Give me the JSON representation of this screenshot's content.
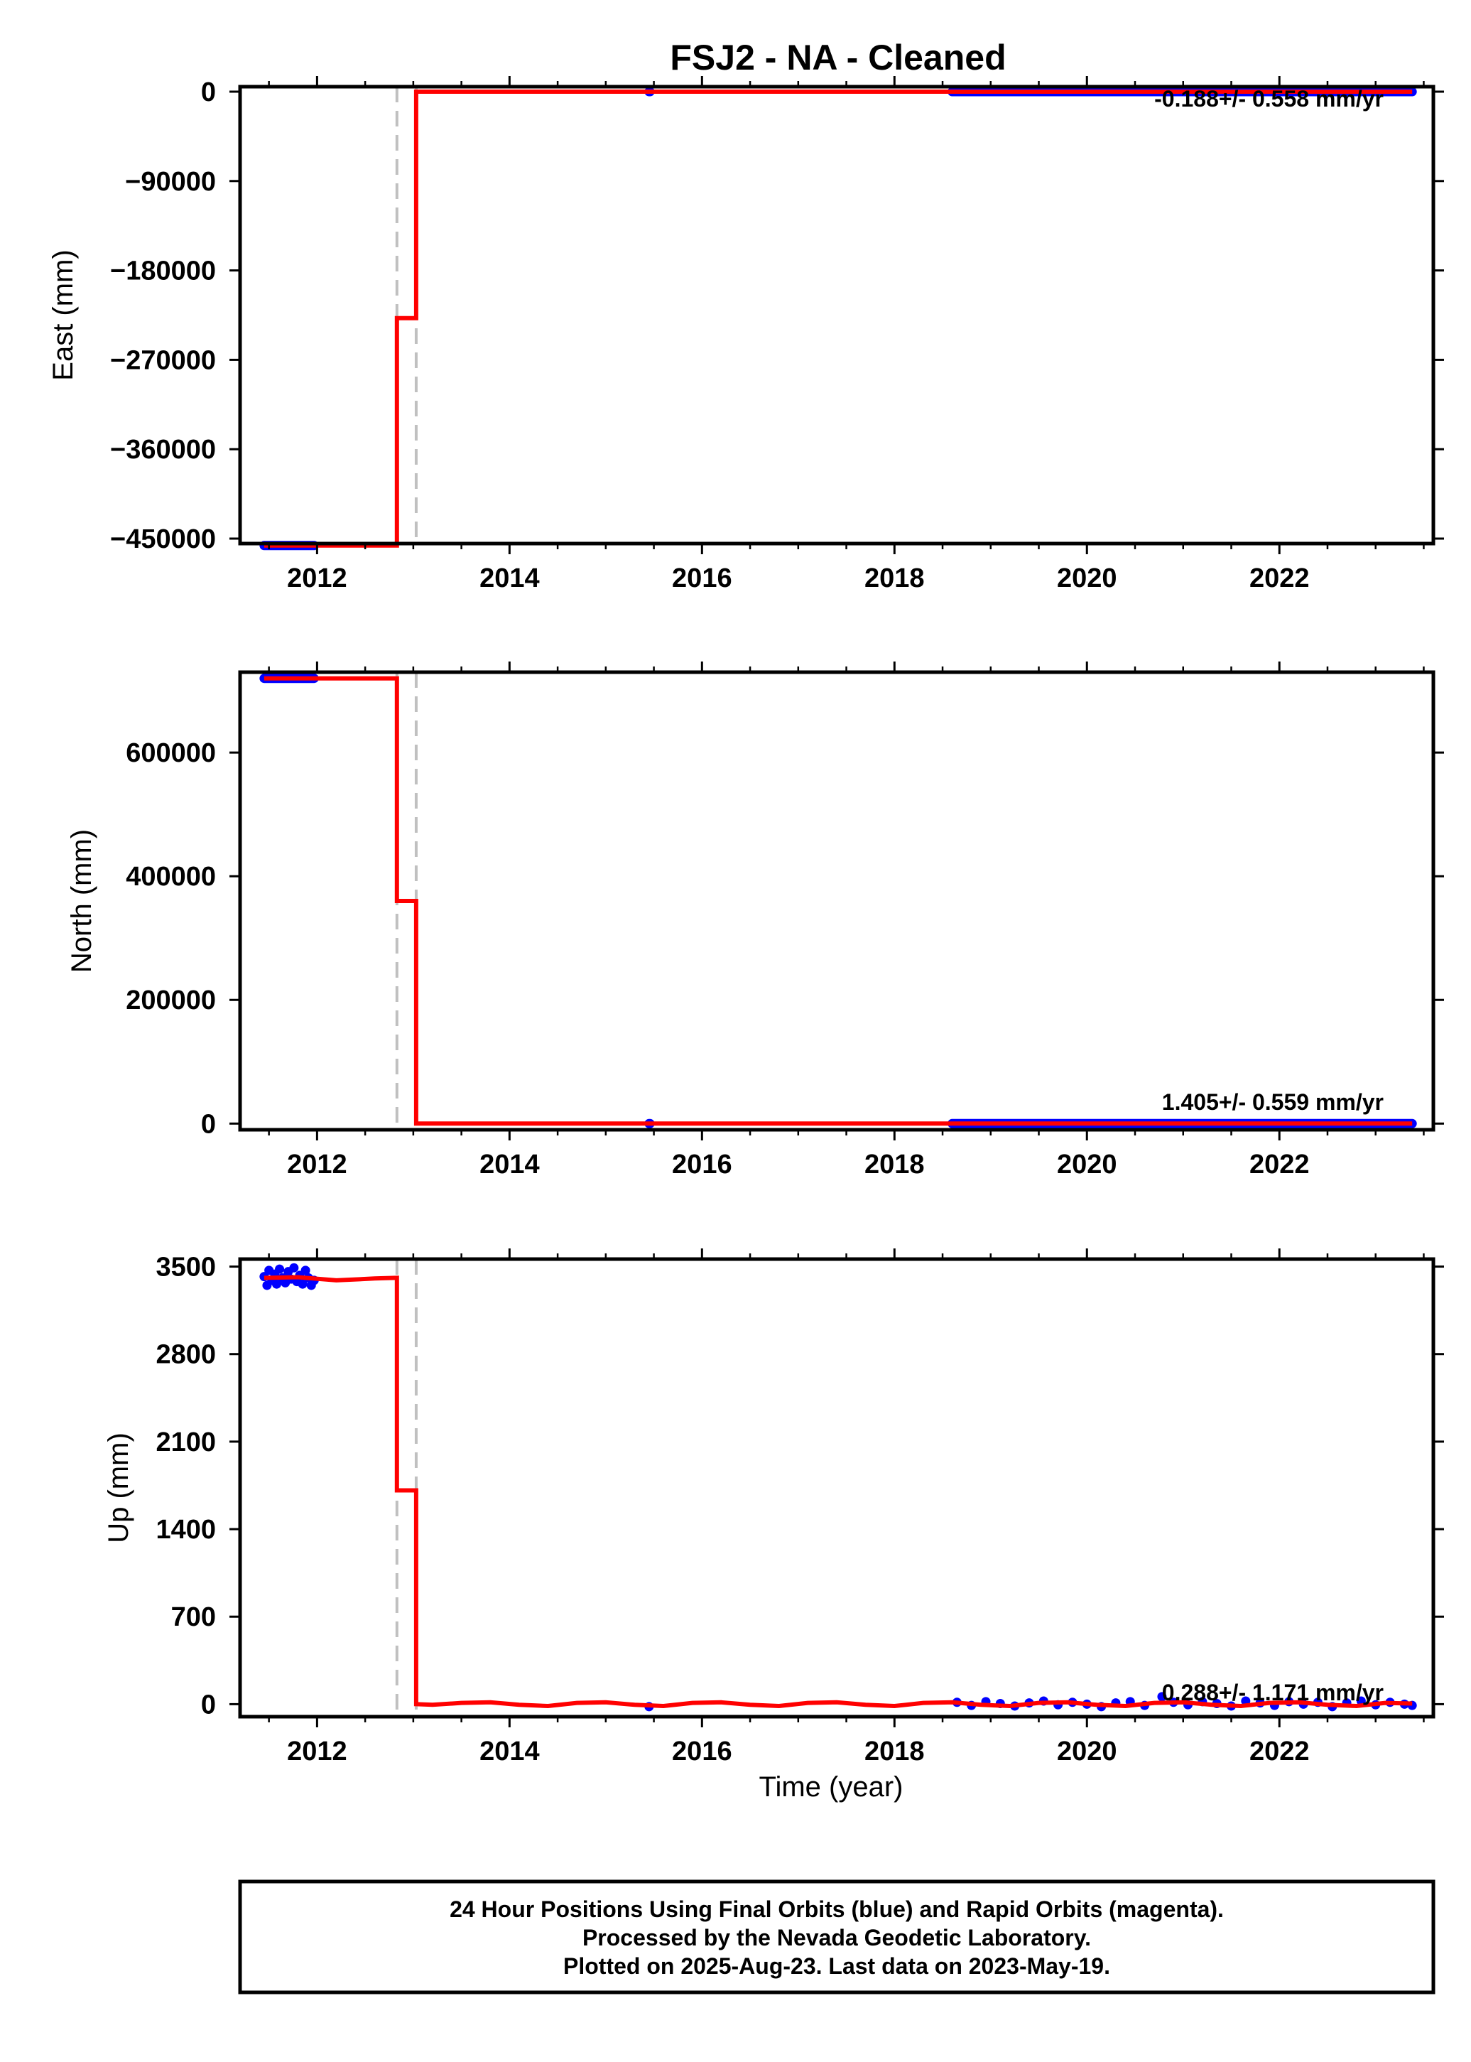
{
  "title": "FSJ2  - NA - Cleaned",
  "xlabel": "Time (year)",
  "footer": [
    "24 Hour Positions Using Final Orbits (blue) and Rapid Orbits (magenta).",
    "Processed by the Nevada Geodetic Laboratory.",
    "Plotted on 2025-Aug-23. Last data on 2023-May-19."
  ],
  "colors": {
    "final_orbits": "#0000ff",
    "rapid_orbits": "#ff00ff",
    "model": "#ff0000",
    "event_line": "#c0c0c0"
  },
  "chart_data": [
    {
      "type": "scatter",
      "panel": "east",
      "ylabel": "East (mm)",
      "xlim": [
        2011.2,
        2023.6
      ],
      "ylim": [
        -455000,
        5000
      ],
      "xticks": [
        2012,
        2014,
        2016,
        2018,
        2020,
        2022
      ],
      "xtick_labels": [
        "2012",
        "2014",
        "2016",
        "2018",
        "2020",
        "2022"
      ],
      "yticks": [
        0,
        -90000,
        -180000,
        -270000,
        -360000,
        -450000
      ],
      "ytick_labels": [
        "0",
        "−90000",
        "−180000",
        "−270000",
        "−360000",
        "−450000"
      ],
      "rate_label": "-0.188+/- 0.558 mm/yr",
      "event_lines_x": [
        2012.83,
        2013.03
      ],
      "observation_segments": [
        {
          "x_start": 2011.45,
          "x_end": 2011.97,
          "y": -457000
        },
        {
          "x_start": 2015.45,
          "x_end": 2015.46,
          "y": 0
        },
        {
          "x_start": 2018.6,
          "x_end": 2023.38,
          "y": 0
        }
      ],
      "model": {
        "name": "model",
        "x": [
          2011.45,
          2012.83,
          2012.83,
          2013.03,
          2013.03,
          2023.38
        ],
        "y": [
          -457000,
          -457000,
          -228000,
          -228000,
          0,
          0
        ]
      }
    },
    {
      "type": "scatter",
      "panel": "north",
      "ylabel": "North (mm)",
      "xlim": [
        2011.2,
        2023.6
      ],
      "ylim": [
        -10000,
        730000
      ],
      "xticks": [
        2012,
        2014,
        2016,
        2018,
        2020,
        2022
      ],
      "xtick_labels": [
        "2012",
        "2014",
        "2016",
        "2018",
        "2020",
        "2022"
      ],
      "yticks": [
        0,
        200000,
        400000,
        600000
      ],
      "ytick_labels": [
        "0",
        "200000",
        "400000",
        "600000"
      ],
      "rate_label": "1.405+/- 0.559 mm/yr",
      "event_lines_x": [
        2012.83,
        2013.03
      ],
      "observation_segments": [
        {
          "x_start": 2011.45,
          "x_end": 2011.97,
          "y": 720000
        },
        {
          "x_start": 2015.45,
          "x_end": 2015.46,
          "y": 0
        },
        {
          "x_start": 2018.6,
          "x_end": 2023.38,
          "y": 0
        }
      ],
      "model": {
        "name": "model",
        "x": [
          2011.45,
          2012.83,
          2012.83,
          2013.03,
          2013.03,
          2023.38
        ],
        "y": [
          720000,
          720000,
          360000,
          360000,
          0,
          0
        ]
      }
    },
    {
      "type": "scatter",
      "panel": "up",
      "ylabel": "Up (mm)",
      "xlim": [
        2011.2,
        2023.6
      ],
      "ylim": [
        -100,
        3560
      ],
      "xticks": [
        2012,
        2014,
        2016,
        2018,
        2020,
        2022
      ],
      "xtick_labels": [
        "2012",
        "2014",
        "2016",
        "2018",
        "2020",
        "2022"
      ],
      "yticks": [
        0,
        700,
        1400,
        2100,
        2800,
        3500
      ],
      "ytick_labels": [
        "0",
        "700",
        "1400",
        "2100",
        "2800",
        "3500"
      ],
      "rate_label": "0.288+/- 1.171 mm/yr",
      "event_lines_x": [
        2012.83,
        2013.03
      ],
      "observation_points": [
        {
          "x": 2011.45,
          "y": 3420
        },
        {
          "x": 2011.48,
          "y": 3350
        },
        {
          "x": 2011.5,
          "y": 3470
        },
        {
          "x": 2011.53,
          "y": 3390
        },
        {
          "x": 2011.56,
          "y": 3440
        },
        {
          "x": 2011.58,
          "y": 3360
        },
        {
          "x": 2011.61,
          "y": 3480
        },
        {
          "x": 2011.64,
          "y": 3410
        },
        {
          "x": 2011.67,
          "y": 3370
        },
        {
          "x": 2011.7,
          "y": 3460
        },
        {
          "x": 2011.73,
          "y": 3400
        },
        {
          "x": 2011.76,
          "y": 3490
        },
        {
          "x": 2011.79,
          "y": 3380
        },
        {
          "x": 2011.82,
          "y": 3430
        },
        {
          "x": 2011.85,
          "y": 3360
        },
        {
          "x": 2011.88,
          "y": 3470
        },
        {
          "x": 2011.91,
          "y": 3410
        },
        {
          "x": 2011.94,
          "y": 3350
        },
        {
          "x": 2011.97,
          "y": 3390
        },
        {
          "x": 2015.45,
          "y": -20
        },
        {
          "x": 2018.65,
          "y": 15
        },
        {
          "x": 2018.8,
          "y": -10
        },
        {
          "x": 2018.95,
          "y": 20
        },
        {
          "x": 2019.1,
          "y": 5
        },
        {
          "x": 2019.25,
          "y": -15
        },
        {
          "x": 2019.4,
          "y": 10
        },
        {
          "x": 2019.55,
          "y": 25
        },
        {
          "x": 2019.7,
          "y": -5
        },
        {
          "x": 2019.85,
          "y": 15
        },
        {
          "x": 2020.0,
          "y": 0
        },
        {
          "x": 2020.15,
          "y": -20
        },
        {
          "x": 2020.3,
          "y": 10
        },
        {
          "x": 2020.45,
          "y": 20
        },
        {
          "x": 2020.6,
          "y": -10
        },
        {
          "x": 2020.78,
          "y": 60
        },
        {
          "x": 2020.9,
          "y": 15
        },
        {
          "x": 2021.05,
          "y": -5
        },
        {
          "x": 2021.2,
          "y": 20
        },
        {
          "x": 2021.35,
          "y": 5
        },
        {
          "x": 2021.5,
          "y": -15
        },
        {
          "x": 2021.65,
          "y": 25
        },
        {
          "x": 2021.8,
          "y": 10
        },
        {
          "x": 2021.95,
          "y": -10
        },
        {
          "x": 2022.1,
          "y": 20
        },
        {
          "x": 2022.25,
          "y": 0
        },
        {
          "x": 2022.4,
          "y": 15
        },
        {
          "x": 2022.55,
          "y": -20
        },
        {
          "x": 2022.7,
          "y": 10
        },
        {
          "x": 2022.85,
          "y": 25
        },
        {
          "x": 2023.0,
          "y": -5
        },
        {
          "x": 2023.15,
          "y": 15
        },
        {
          "x": 2023.3,
          "y": 0
        },
        {
          "x": 2023.38,
          "y": -10
        }
      ],
      "model": {
        "name": "model",
        "x": [
          2011.45,
          2011.8,
          2012.2,
          2012.6,
          2012.83,
          2012.83,
          2013.03,
          2013.03,
          2013.2,
          2013.5,
          2013.8,
          2014.1,
          2014.4,
          2014.7,
          2015.0,
          2015.3,
          2015.6,
          2015.9,
          2016.2,
          2016.5,
          2016.8,
          2017.1,
          2017.4,
          2017.7,
          2018.0,
          2018.3,
          2018.6,
          2018.9,
          2019.2,
          2019.5,
          2019.8,
          2020.1,
          2020.4,
          2020.7,
          2021.0,
          2021.3,
          2021.6,
          2021.9,
          2022.2,
          2022.5,
          2022.8,
          2023.1,
          2023.38
        ],
        "y": [
          3410,
          3415,
          3390,
          3405,
          3410,
          1710,
          1710,
          0,
          -5,
          10,
          15,
          -5,
          -15,
          10,
          15,
          -5,
          -15,
          10,
          15,
          -5,
          -15,
          10,
          15,
          -5,
          -15,
          10,
          15,
          -5,
          -15,
          10,
          15,
          -5,
          -15,
          10,
          15,
          -5,
          -15,
          10,
          15,
          -5,
          -15,
          10,
          5
        ]
      }
    }
  ]
}
